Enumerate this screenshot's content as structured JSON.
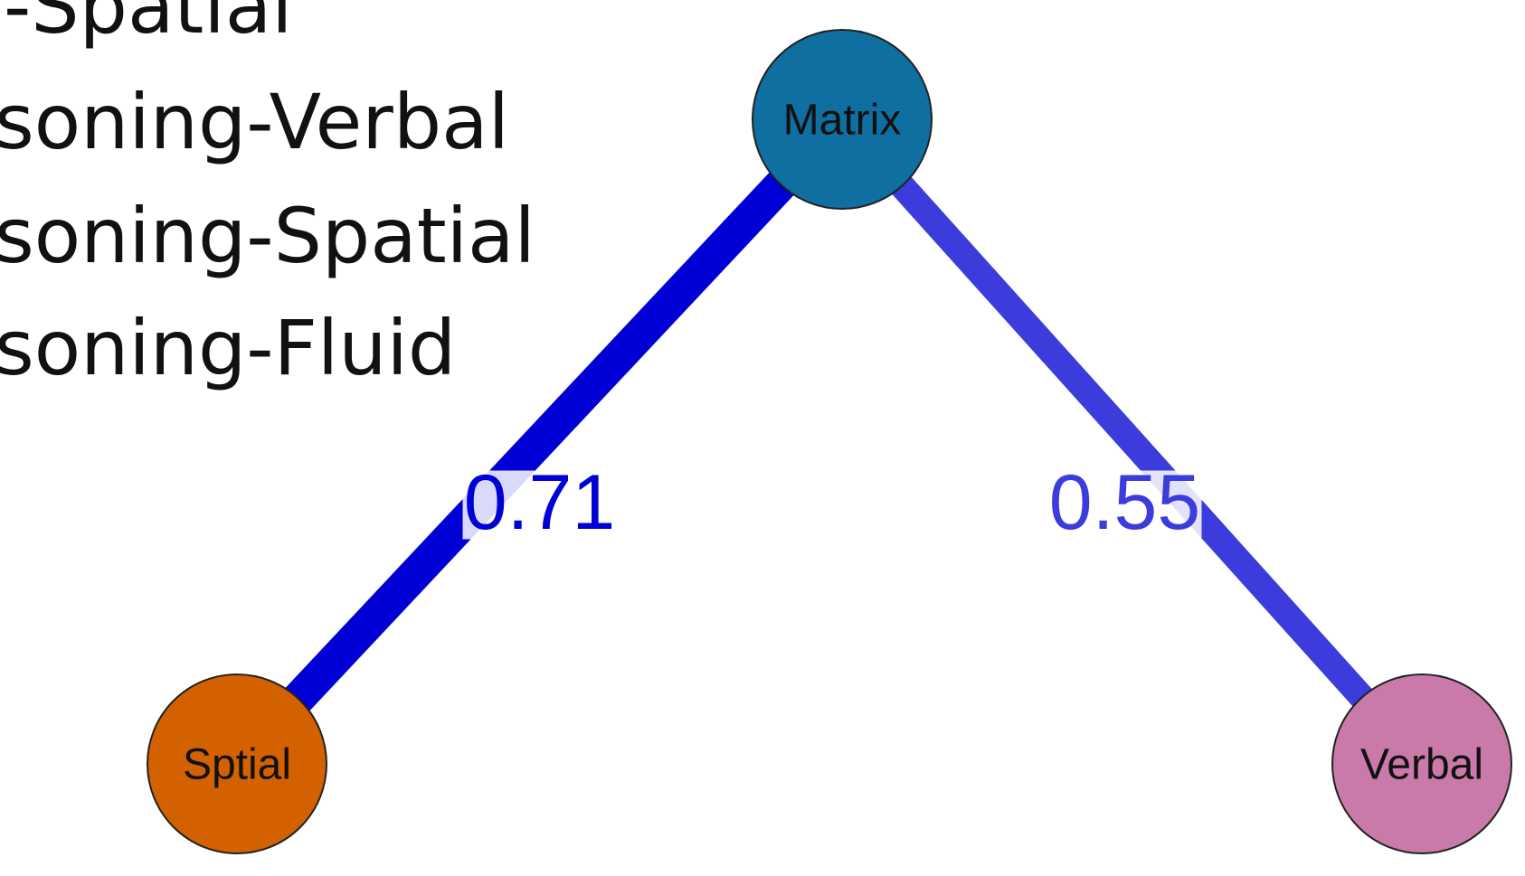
{
  "legend": [
    "-Spatial",
    "soning-Verbal",
    "soning-Spatial",
    "soning-Fluid"
  ],
  "nodes": [
    {
      "label": "Matrix",
      "color": "#0f6fa1"
    },
    {
      "label": "Sptial",
      "color": "#d46100"
    },
    {
      "label": "Verbal",
      "color": "#c97aa9"
    }
  ],
  "edges": [
    {
      "source": 0,
      "target": 1,
      "weight": 0.71,
      "color": "#0000d6"
    },
    {
      "source": 0,
      "target": 2,
      "weight": 0.55,
      "color": "#3c3cdc"
    }
  ]
}
